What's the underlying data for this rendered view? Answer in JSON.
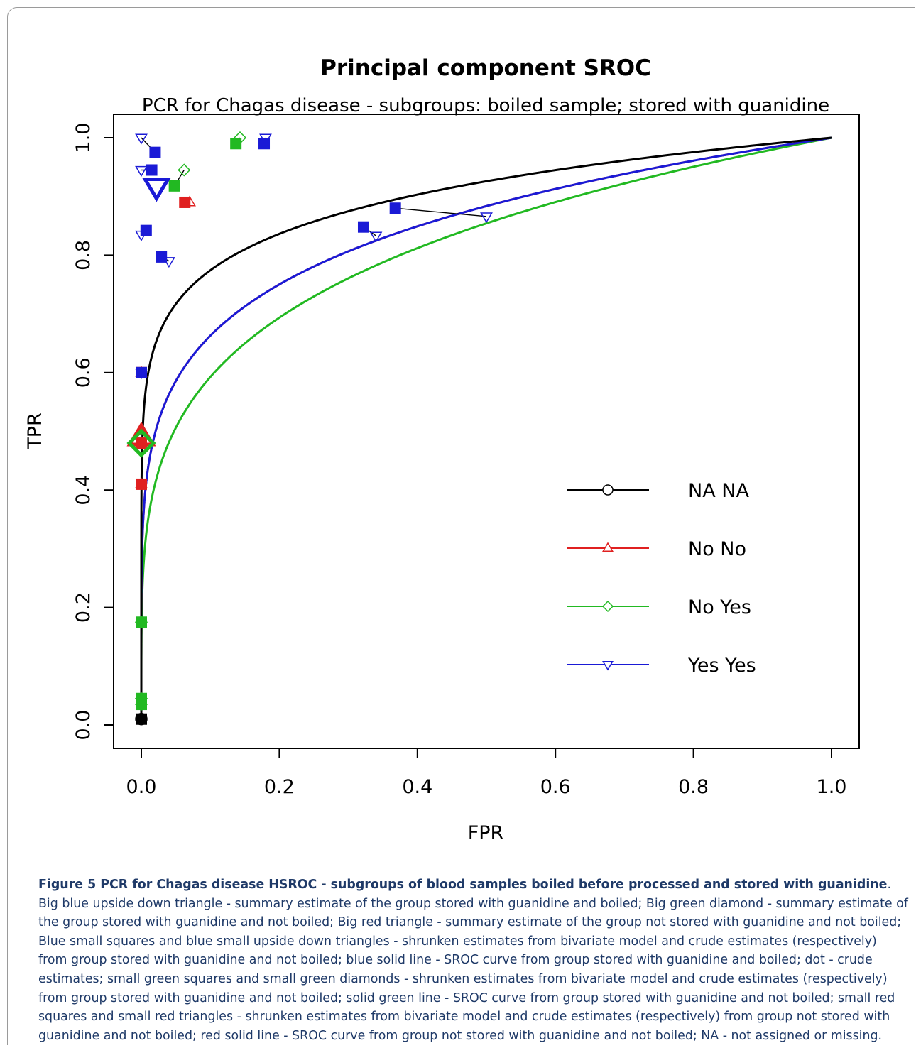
{
  "chart_data": {
    "type": "scatter",
    "title": "Principal component SROC",
    "subtitle": "PCR for Chagas disease - subgroups: boiled sample; stored with guanidine",
    "xlabel": "FPR",
    "ylabel": "TPR",
    "xlim": [
      0,
      1
    ],
    "ylim": [
      0,
      1
    ],
    "xticks": [
      "0.0",
      "0.2",
      "0.4",
      "0.6",
      "0.8",
      "1.0"
    ],
    "yticks": [
      "0.0",
      "0.2",
      "0.4",
      "0.6",
      "0.8",
      "1.0"
    ],
    "grid": false,
    "legend_position": "right-center",
    "series": [
      {
        "name": "NA NA",
        "color": "#000000",
        "marker": "circle",
        "curve_a": 9.0,
        "points": [
          {
            "crude": [
              0.0,
              0.01
            ],
            "shrunk": [
              0.0,
              0.01
            ]
          }
        ]
      },
      {
        "name": "No No",
        "color": "#e02020",
        "marker": "triangle-up",
        "curve_a": 5.6,
        "summary": [
          0.0,
          0.49
        ],
        "points": [
          {
            "crude": [
              0.07,
              0.89
            ],
            "shrunk": [
              0.063,
              0.89
            ]
          },
          {
            "crude": [
              0.0,
              0.6
            ],
            "shrunk": [
              0.0,
              0.6
            ]
          },
          {
            "crude": [
              0.0,
              0.41
            ],
            "shrunk": [
              0.0,
              0.41
            ]
          },
          {
            "crude": [
              0.0,
              0.48
            ],
            "shrunk": [
              0.0,
              0.48
            ]
          }
        ]
      },
      {
        "name": "No Yes",
        "color": "#22b922",
        "marker": "diamond",
        "curve_a": 4.4,
        "summary": [
          0.0,
          0.48
        ],
        "points": [
          {
            "crude": [
              0.143,
              1.0
            ],
            "shrunk": [
              0.137,
              0.99
            ]
          },
          {
            "crude": [
              0.062,
              0.945
            ],
            "shrunk": [
              0.048,
              0.918
            ]
          },
          {
            "crude": [
              0.0,
              0.175
            ],
            "shrunk": [
              0.0,
              0.175
            ]
          },
          {
            "crude": [
              0.0,
              0.045
            ],
            "shrunk": [
              0.0,
              0.045
            ]
          },
          {
            "crude": [
              0.0,
              0.035
            ],
            "shrunk": [
              0.0,
              0.035
            ]
          }
        ]
      },
      {
        "name": "Yes Yes",
        "color": "#1a1ad6",
        "marker": "triangle-down",
        "curve_a": 5.6,
        "summary": [
          0.022,
          0.917
        ],
        "points": [
          {
            "crude": [
              0.0,
              1.0
            ],
            "shrunk": [
              0.02,
              0.975
            ]
          },
          {
            "crude": [
              0.18,
              1.0
            ],
            "shrunk": [
              0.178,
              0.99
            ]
          },
          {
            "crude": [
              0.0,
              0.945
            ],
            "shrunk": [
              0.015,
              0.945
            ]
          },
          {
            "crude": [
              0.0,
              0.835
            ],
            "shrunk": [
              0.007,
              0.842
            ]
          },
          {
            "crude": [
              0.04,
              0.79
            ],
            "shrunk": [
              0.029,
              0.797
            ]
          },
          {
            "crude": [
              0.5,
              0.866
            ],
            "shrunk": [
              0.368,
              0.88
            ]
          },
          {
            "crude": [
              0.34,
              0.833
            ],
            "shrunk": [
              0.322,
              0.848
            ]
          },
          {
            "crude": [
              0.0,
              0.6
            ],
            "shrunk": [
              0.0,
              0.6
            ]
          }
        ]
      }
    ]
  },
  "caption": {
    "label": "Figure 5 PCR for Chagas disease HSROC - subgroups of blood samples boiled before processed and stored with guanidine",
    "text": ". Big blue upside down triangle - summary estimate of the group stored with guanidine and boiled; Big green diamond - summary estimate of the group stored with guanidine and not boiled; Big red triangle - summary estimate of the group not stored with guanidine and not boiled; Blue small squares and blue small upside down triangles - shrunken estimates from bivariate model and crude estimates (respectively) from group stored with guanidine and not boiled; blue solid line - SROC curve from group stored with guanidine and boiled; dot - crude estimates; small green squares and small green diamonds - shrunken estimates from bivariate model and crude estimates (respectively) from group stored with guanidine and not boiled; solid green line - SROC curve from group stored with guanidine and not boiled; small red squares and small red triangles - shrunken estimates from bivariate model and crude estimates (respectively) from group not stored with guanidine and not boiled; red solid line - SROC curve from group not stored with guanidine and not boiled; NA - not assigned or missing."
  }
}
